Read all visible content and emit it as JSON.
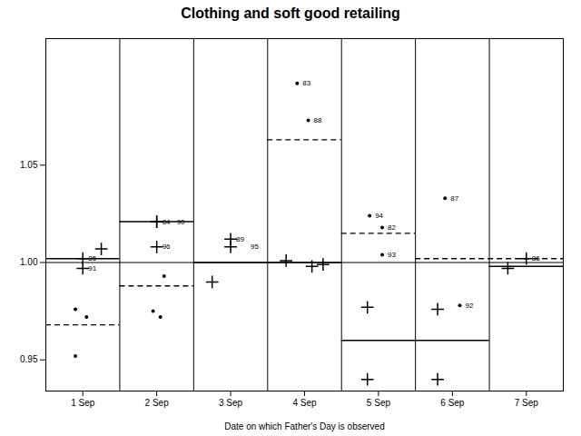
{
  "chart_data": {
    "type": "dot_plot",
    "title": "Clothing and soft good retailing",
    "xlabel": "Date on which Father's Day is observed",
    "xlim": [
      0.5,
      7.5
    ],
    "xticks": [
      {
        "value": 1,
        "label": "1 Sep"
      },
      {
        "value": 2,
        "label": "2 Sep"
      },
      {
        "value": 3,
        "label": "3 Sep"
      },
      {
        "value": 4,
        "label": "4 Sep"
      },
      {
        "value": 5,
        "label": "5 Sep"
      },
      {
        "value": 6,
        "label": "6 Sep"
      },
      {
        "value": 7,
        "label": "7 Sep"
      }
    ],
    "ylim": [
      0.934,
      1.115
    ],
    "yticks": [
      0.95,
      {
        "value": 1.0,
        "label": "1.00"
      },
      1.05
    ],
    "vlines": [
      1.5,
      2.5,
      3.5,
      4.5,
      5.5,
      6.5
    ],
    "hlines": [
      1.0
    ],
    "segments": [
      {
        "x0": 0.5,
        "x1": 1.5,
        "y": 1.002,
        "line_style": "solid"
      },
      {
        "x0": 0.5,
        "x1": 1.5,
        "y": 0.968,
        "line_style": "dashed"
      },
      {
        "x0": 1.5,
        "x1": 2.5,
        "y": 1.021,
        "line_style": "solid"
      },
      {
        "x0": 1.5,
        "x1": 2.5,
        "y": 0.988,
        "line_style": "dashed"
      },
      {
        "x0": 2.5,
        "x1": 3.5,
        "y": 1.0,
        "line_style": "solid"
      },
      {
        "x0": 3.5,
        "x1": 4.5,
        "y": 1.0,
        "line_style": "solid"
      },
      {
        "x0": 3.5,
        "x1": 4.5,
        "y": 1.063,
        "line_style": "dashed"
      },
      {
        "x0": 4.5,
        "x1": 5.5,
        "y": 0.96,
        "line_style": "solid"
      },
      {
        "x0": 4.5,
        "x1": 5.5,
        "y": 1.015,
        "line_style": "dashed"
      },
      {
        "x0": 5.5,
        "x1": 6.5,
        "y": 0.96,
        "line_style": "solid"
      },
      {
        "x0": 5.5,
        "x1": 7.5,
        "y": 1.002,
        "line_style": "dashed"
      },
      {
        "x0": 6.5,
        "x1": 7.5,
        "y": 0.998,
        "line_style": "solid"
      }
    ],
    "points": [
      {
        "x": 1,
        "y": 1.002,
        "marker": "plus",
        "label": "85"
      },
      {
        "x": 1,
        "y": 0.997,
        "marker": "plus",
        "label": "91"
      },
      {
        "x": 1.25,
        "y": 1.007,
        "marker": "plus"
      },
      {
        "x": 0.9,
        "y": 0.976,
        "marker": "dot"
      },
      {
        "x": 1.05,
        "y": 0.972,
        "marker": "dot"
      },
      {
        "x": 0.9,
        "y": 0.952,
        "marker": "dot"
      },
      {
        "x": 2,
        "y": 1.021,
        "marker": "plus",
        "label": "84"
      },
      {
        "x": 2,
        "y": 1.021,
        "marker": "plus",
        "label": "90"
      },
      {
        "x": 2,
        "y": 1.008,
        "marker": "plus",
        "label": "96"
      },
      {
        "x": 2.1,
        "y": 0.993,
        "marker": "dot"
      },
      {
        "x": 1.95,
        "y": 0.975,
        "marker": "dot"
      },
      {
        "x": 2.05,
        "y": 0.972,
        "marker": "dot"
      },
      {
        "x": 3,
        "y": 1.012,
        "marker": "plus",
        "label": "89"
      },
      {
        "x": 3,
        "y": 1.008,
        "marker": "plus",
        "label": "95"
      },
      {
        "x": 2.75,
        "y": 0.99,
        "marker": "plus"
      },
      {
        "x": 3.75,
        "y": 1.001,
        "marker": "plus"
      },
      {
        "x": 4.1,
        "y": 0.998,
        "marker": "plus"
      },
      {
        "x": 4.25,
        "y": 0.999,
        "marker": "plus"
      },
      {
        "x": 3.9,
        "y": 1.092,
        "marker": "dot",
        "label": "83"
      },
      {
        "x": 4.05,
        "y": 1.073,
        "marker": "dot",
        "label": "88"
      },
      {
        "x": 4.85,
        "y": 0.977,
        "marker": "plus"
      },
      {
        "x": 4.85,
        "y": 0.94,
        "marker": "plus"
      },
      {
        "x": 4.88,
        "y": 1.024,
        "marker": "dot",
        "label": "94"
      },
      {
        "x": 5.05,
        "y": 1.018,
        "marker": "dot",
        "label": "82"
      },
      {
        "x": 5.05,
        "y": 1.004,
        "marker": "dot",
        "label": "93"
      },
      {
        "x": 5.8,
        "y": 0.976,
        "marker": "plus"
      },
      {
        "x": 5.8,
        "y": 0.94,
        "marker": "plus"
      },
      {
        "x": 5.9,
        "y": 1.033,
        "marker": "dot",
        "label": "87"
      },
      {
        "x": 6.1,
        "y": 0.978,
        "marker": "dot",
        "label": "92"
      },
      {
        "x": 7,
        "y": 1.002,
        "marker": "plus",
        "label": "86"
      },
      {
        "x": 6.75,
        "y": 0.997,
        "marker": "plus"
      }
    ]
  }
}
